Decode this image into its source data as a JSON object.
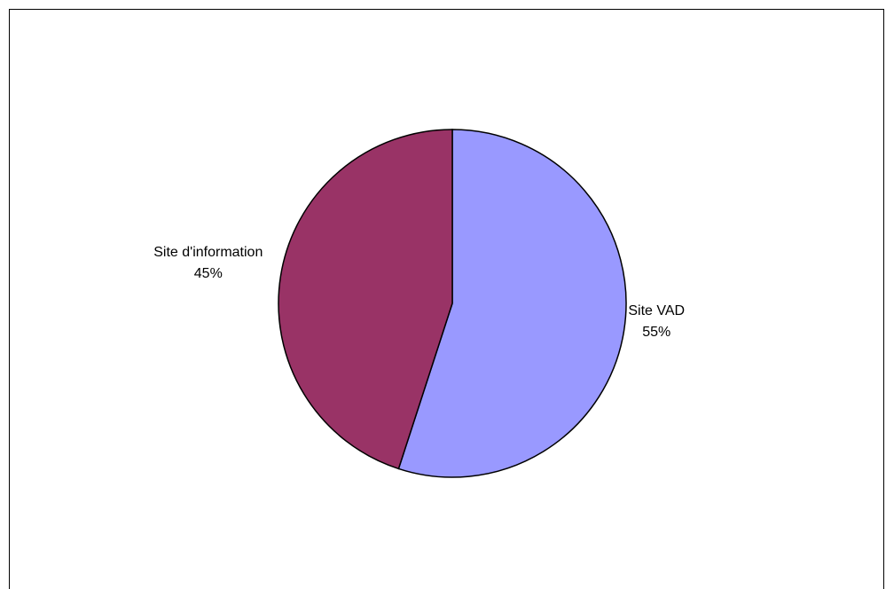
{
  "chart_data": {
    "type": "pie",
    "title": "",
    "slices": [
      {
        "label": "Site VAD",
        "value": 55,
        "value_label": "55%",
        "color": "#9999ff"
      },
      {
        "label": "Site d'information",
        "value": 45,
        "value_label": "45%",
        "color": "#993366"
      }
    ],
    "start": "top",
    "direction": "clockwise",
    "outline_color": "#000000"
  }
}
